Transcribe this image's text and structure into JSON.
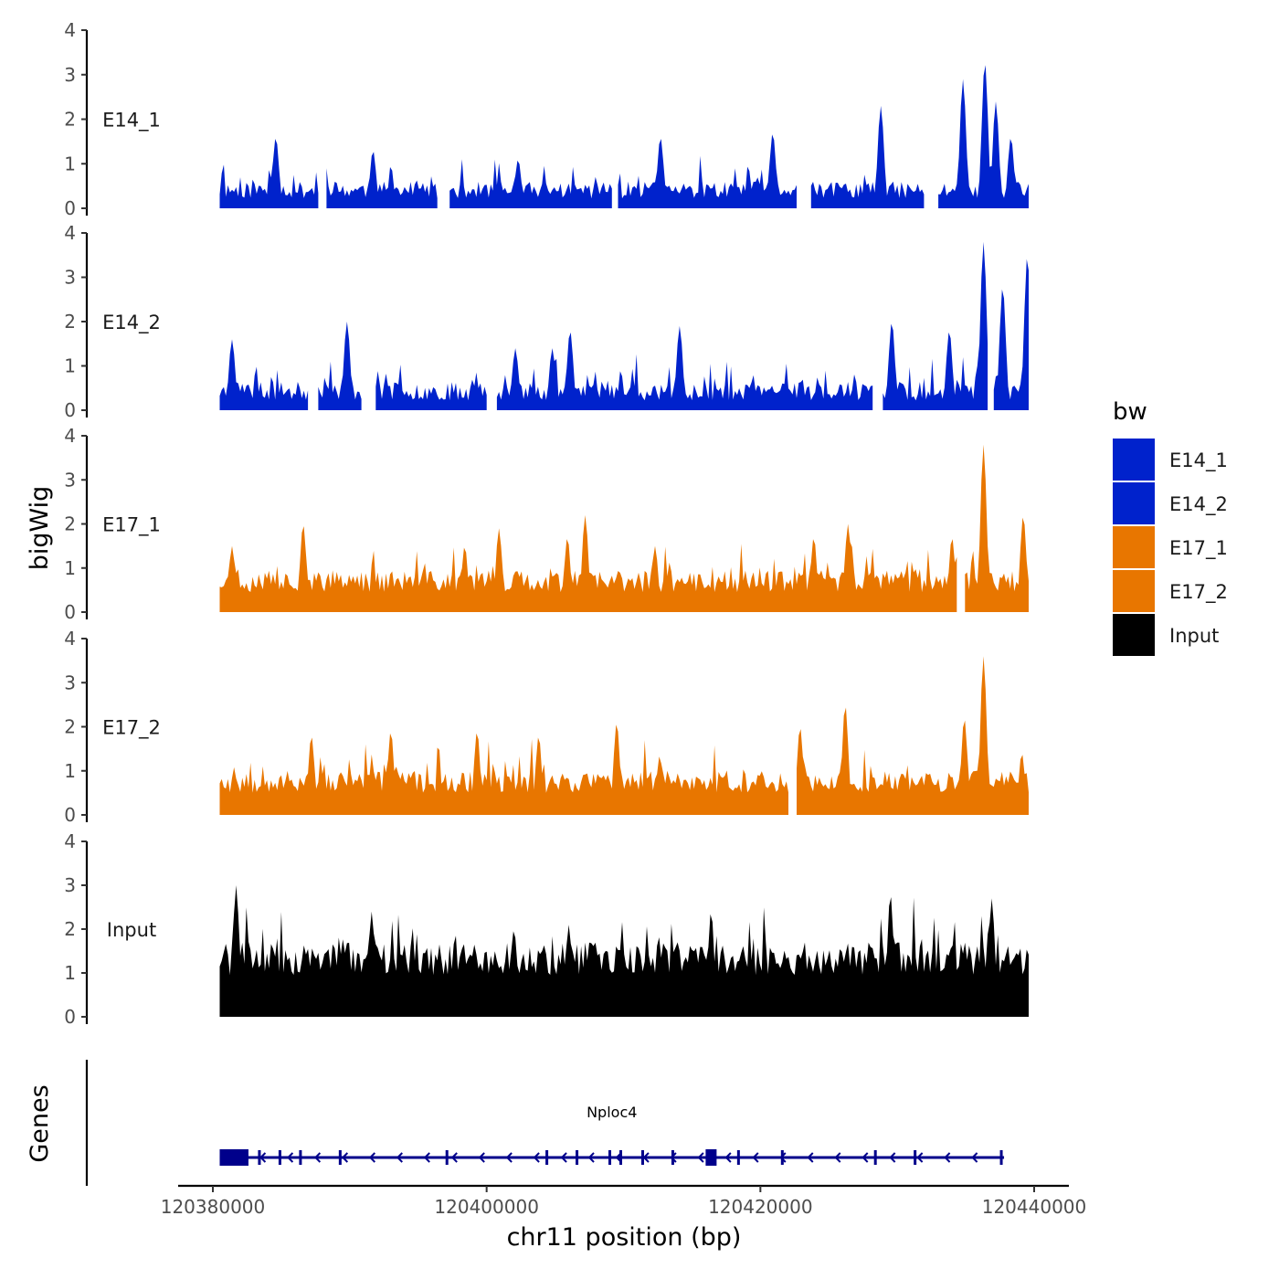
{
  "chart_data": {
    "type": "area",
    "title": "",
    "xlabel": "chr11 position (bp)",
    "ylabel_tracks": "bigWig",
    "ylabel_genes": "Genes",
    "chromosome": "chr11",
    "xlim": [
      120378000,
      120440000
    ],
    "data_range": [
      120380500,
      120439600
    ],
    "xticks": [
      120380000,
      120400000,
      120420000,
      120440000
    ],
    "xtick_labels": [
      "120380000",
      "120400000",
      "120420000",
      "120440000"
    ],
    "ylim": [
      0,
      4
    ],
    "yticks": [
      0,
      1,
      2,
      3,
      4
    ],
    "ytick_labels": [
      "0",
      "1",
      "2",
      "3",
      "4"
    ],
    "legend": {
      "title": "bw",
      "position": "right",
      "entries": [
        {
          "label": "E14_1",
          "color": "#0022cc"
        },
        {
          "label": "E14_2",
          "color": "#0022cc"
        },
        {
          "label": "E17_1",
          "color": "#e87600"
        },
        {
          "label": "E17_2",
          "color": "#e87600"
        },
        {
          "label": "Input",
          "color": "#000000"
        }
      ]
    },
    "series": [
      {
        "name": "E14_1",
        "color": "#0022cc",
        "base": 0.22,
        "noise": 0.38,
        "gap_rate": 0.16,
        "seed": 11,
        "peaks": [
          [
            120384600,
            1.6
          ],
          [
            120391700,
            1.3
          ],
          [
            120402300,
            1.1
          ],
          [
            120412700,
            1.6
          ],
          [
            120420900,
            1.7
          ],
          [
            120428800,
            2.3
          ],
          [
            120434800,
            2.9
          ],
          [
            120436400,
            3.3
          ],
          [
            120437200,
            2.4
          ],
          [
            120438300,
            1.6
          ]
        ]
      },
      {
        "name": "E14_2",
        "color": "#0022cc",
        "base": 0.22,
        "noise": 0.42,
        "gap_rate": 0.2,
        "seed": 23,
        "peaks": [
          [
            120381400,
            1.6
          ],
          [
            120389800,
            2.0
          ],
          [
            120402100,
            1.4
          ],
          [
            120404800,
            1.4
          ],
          [
            120406100,
            1.8
          ],
          [
            120414100,
            1.9
          ],
          [
            120429600,
            2.0
          ],
          [
            120433800,
            1.8
          ],
          [
            120436300,
            3.8
          ],
          [
            120437700,
            2.8
          ],
          [
            120439500,
            3.5
          ]
        ]
      },
      {
        "name": "E17_1",
        "color": "#e87600",
        "base": 0.45,
        "noise": 0.5,
        "gap_rate": 0.05,
        "seed": 37,
        "peaks": [
          [
            120381400,
            1.5
          ],
          [
            120386600,
            2.0
          ],
          [
            120398400,
            1.5
          ],
          [
            120400900,
            1.9
          ],
          [
            120405900,
            1.7
          ],
          [
            120407200,
            2.2
          ],
          [
            120412300,
            1.5
          ],
          [
            120423900,
            1.7
          ],
          [
            120426400,
            2.0
          ],
          [
            120434000,
            1.7
          ],
          [
            120436300,
            3.8
          ],
          [
            120439200,
            2.2
          ]
        ]
      },
      {
        "name": "E17_2",
        "color": "#e87600",
        "base": 0.5,
        "noise": 0.5,
        "gap_rate": 0.04,
        "seed": 53,
        "peaks": [
          [
            120387200,
            1.8
          ],
          [
            120393000,
            1.9
          ],
          [
            120399300,
            1.9
          ],
          [
            120403800,
            1.8
          ],
          [
            120409500,
            2.1
          ],
          [
            120422900,
            2.0
          ],
          [
            120426200,
            2.5
          ],
          [
            120434900,
            2.2
          ],
          [
            120436300,
            3.6
          ],
          [
            120439100,
            1.4
          ]
        ]
      },
      {
        "name": "Input",
        "color": "#000000",
        "base": 0.95,
        "noise": 0.75,
        "gap_rate": 0,
        "seed": 71,
        "peaks": [
          [
            120381700,
            3.0
          ],
          [
            120391600,
            2.4
          ],
          [
            120402000,
            2.0
          ],
          [
            120406000,
            2.1
          ],
          [
            120416400,
            2.4
          ],
          [
            120429500,
            2.8
          ],
          [
            120436900,
            2.7
          ]
        ]
      }
    ],
    "gene_track": {
      "gene": "Nploc4",
      "strand": "-",
      "start": 120380500,
      "end": 120437800,
      "color": "#00008b",
      "exons": [
        [
          120380500,
          120382600
        ],
        [
          120383300,
          120383500
        ],
        [
          120384800,
          120384950
        ],
        [
          120386300,
          120386400
        ],
        [
          120389200,
          120389300
        ],
        [
          120397000,
          120397100
        ],
        [
          120404300,
          120404400
        ],
        [
          120406500,
          120406600
        ],
        [
          120408900,
          120409000
        ],
        [
          120409700,
          120409800
        ],
        [
          120411300,
          120411400
        ],
        [
          120413500,
          120413700
        ],
        [
          120416000,
          120416800
        ],
        [
          120418300,
          120418400
        ],
        [
          120421500,
          120421600
        ],
        [
          120428300,
          120428450
        ],
        [
          120431200,
          120431300
        ],
        [
          120437500,
          120437650
        ]
      ]
    }
  }
}
